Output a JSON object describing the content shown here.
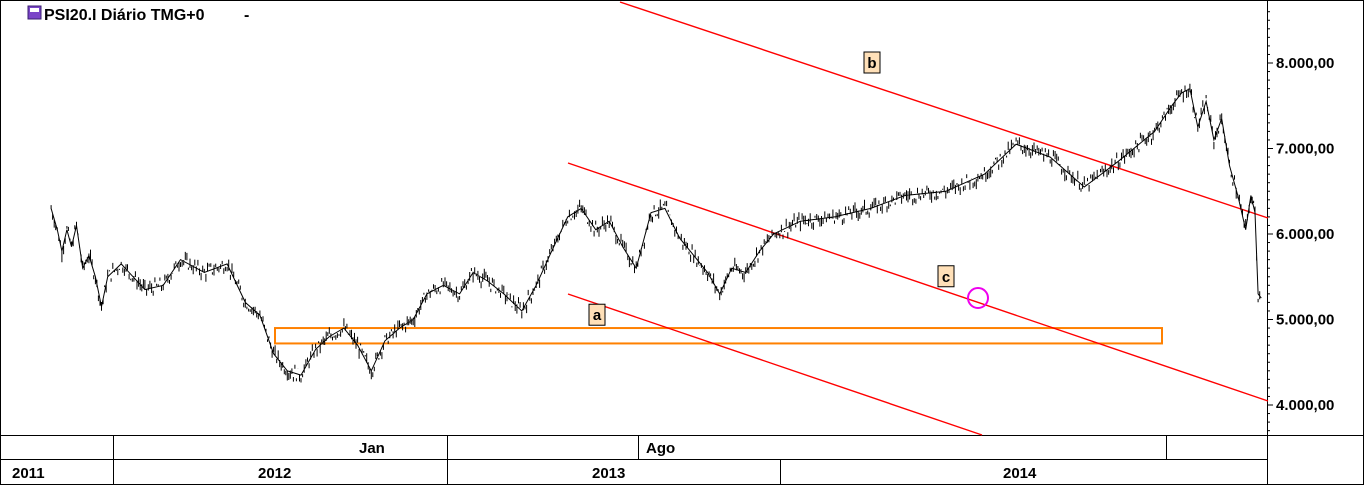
{
  "chart_data": {
    "type": "line",
    "title": "PSI20.I Diário TMG+0",
    "title_suffix": "-",
    "symbol_icon": "cfd-icon",
    "ylim": [
      3650,
      8700
    ],
    "y_ticks": [
      {
        "value": 8000,
        "label": "8.000,00"
      },
      {
        "value": 7000,
        "label": "7.000,00"
      },
      {
        "value": 6000,
        "label": "6.000,00"
      },
      {
        "value": 5000,
        "label": "5.000,00"
      },
      {
        "value": 4000,
        "label": "4.000,00"
      }
    ],
    "x_range": [
      "2011-06-15",
      "2014-12-20"
    ],
    "month_ticks": [
      {
        "date": "2012-01-01",
        "label": ""
      },
      {
        "date": "2013-01-01",
        "label": "Jan"
      },
      {
        "date": "2013-08-01",
        "label": "Ago"
      },
      {
        "date": "2014-06-20",
        "label": ""
      }
    ],
    "year_ticks": [
      {
        "date": "2011-01-01",
        "label": "2011"
      },
      {
        "date": "2012-01-01",
        "label": "2012"
      },
      {
        "date": "2013-01-01",
        "label": "2013"
      },
      {
        "date": "2014-01-01",
        "label": "2014"
      }
    ],
    "series": [
      {
        "color": "#000000",
        "points": [
          [
            "2011-06-15",
            6300
          ],
          [
            "2011-07-05",
            6050
          ],
          [
            "2011-07-20",
            5800
          ],
          [
            "2011-08-05",
            6050
          ],
          [
            "2011-08-20",
            5850
          ],
          [
            "2011-09-05",
            6100
          ],
          [
            "2011-09-25",
            5600
          ],
          [
            "2011-10-15",
            5750
          ],
          [
            "2011-11-05",
            5500
          ],
          [
            "2011-11-25",
            5150
          ],
          [
            "2011-12-15",
            5500
          ],
          [
            "2012-01-10",
            5650
          ],
          [
            "2012-02-05",
            5350
          ],
          [
            "2012-02-25",
            5400
          ],
          [
            "2012-03-15",
            5700
          ],
          [
            "2012-04-10",
            5550
          ],
          [
            "2012-05-05",
            5650
          ],
          [
            "2012-05-25",
            5200
          ],
          [
            "2012-06-10",
            5050
          ],
          [
            "2012-06-25",
            4600
          ],
          [
            "2012-07-10",
            4400
          ],
          [
            "2012-07-25",
            4350
          ],
          [
            "2012-08-10",
            4650
          ],
          [
            "2012-08-25",
            4800
          ],
          [
            "2012-09-10",
            4900
          ],
          [
            "2012-09-25",
            4700
          ],
          [
            "2012-10-10",
            4400
          ],
          [
            "2012-10-25",
            4750
          ],
          [
            "2012-11-10",
            4900
          ],
          [
            "2012-11-25",
            5000
          ],
          [
            "2012-12-10",
            5300
          ],
          [
            "2012-12-28",
            5400
          ],
          [
            "2013-01-15",
            5300
          ],
          [
            "2013-01-30",
            5550
          ],
          [
            "2013-02-15",
            5450
          ],
          [
            "2013-03-05",
            5300
          ],
          [
            "2013-03-25",
            5100
          ],
          [
            "2013-04-10",
            5400
          ],
          [
            "2013-04-25",
            5750
          ],
          [
            "2013-05-15",
            6200
          ],
          [
            "2013-05-30",
            6300
          ],
          [
            "2013-06-15",
            6050
          ],
          [
            "2013-06-30",
            6150
          ],
          [
            "2013-07-15",
            5850
          ],
          [
            "2013-07-30",
            5600
          ],
          [
            "2013-08-15",
            6250
          ],
          [
            "2013-08-30",
            6300
          ],
          [
            "2013-09-15",
            5950
          ],
          [
            "2013-09-30",
            5750
          ],
          [
            "2013-10-15",
            5550
          ],
          [
            "2013-10-28",
            5300
          ],
          [
            "2013-11-10",
            5600
          ],
          [
            "2013-11-25",
            5550
          ],
          [
            "2013-12-10",
            5800
          ],
          [
            "2013-12-25",
            6000
          ],
          [
            "2014-01-10",
            6150
          ],
          [
            "2014-01-25",
            6200
          ],
          [
            "2014-02-10",
            6300
          ],
          [
            "2014-02-25",
            6450
          ],
          [
            "2014-03-15",
            6500
          ],
          [
            "2014-04-01",
            6700
          ],
          [
            "2014-04-15",
            7050
          ],
          [
            "2014-04-30",
            6900
          ],
          [
            "2014-05-15",
            6550
          ],
          [
            "2014-05-30",
            6850
          ],
          [
            "2014-06-15",
            7200
          ],
          [
            "2014-07-01",
            7500
          ],
          [
            "2014-07-20",
            7650
          ],
          [
            "2014-08-05",
            7700
          ],
          [
            "2014-08-20",
            7250
          ],
          [
            "2014-09-05",
            7550
          ],
          [
            "2014-09-20",
            7100
          ],
          [
            "2014-10-05",
            7350
          ],
          [
            "2014-10-20",
            6800
          ],
          [
            "2014-11-05",
            6450
          ],
          [
            "2014-11-20",
            6050
          ],
          [
            "2014-11-30",
            6450
          ],
          [
            "2014-12-08",
            6250
          ],
          [
            "2014-12-14",
            5300
          ],
          [
            "2014-12-20",
            5250
          ]
        ]
      }
    ],
    "overlay_x_note": "",
    "channel_lines": [
      {
        "color": "#ff0000",
        "from": [
          620,
          2
        ],
        "to": [
          1268,
          218
        ]
      },
      {
        "color": "#ff0000",
        "from": [
          568,
          163
        ],
        "to": [
          1268,
          401
        ]
      },
      {
        "color": "#ff0000",
        "from": [
          568,
          294
        ],
        "to": [
          982,
          435
        ]
      }
    ],
    "support_zone": {
      "color": "#ff8000",
      "y_top": 4900,
      "y_bottom": 4720
    },
    "wave_labels": [
      {
        "text": "b",
        "value": 8000
      },
      {
        "text": "a",
        "value": 5050
      },
      {
        "text": "c",
        "value": 5500
      }
    ],
    "highlight_circle": {
      "color": "#ee00ee"
    }
  }
}
